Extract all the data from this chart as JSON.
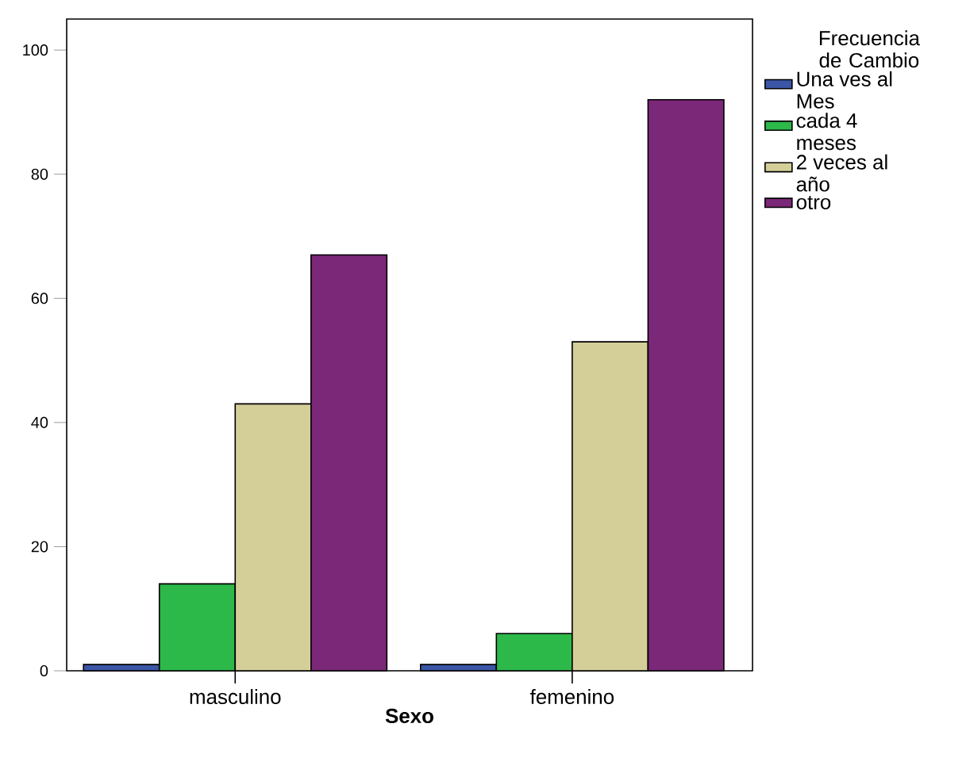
{
  "chart_data": {
    "type": "bar",
    "xlabel": "Sexo",
    "legend_title": "Frecuencia de Cambio",
    "legend": "top right",
    "categories": [
      "masculino",
      "femenino"
    ],
    "series": [
      {
        "name": "Una ves al Mes",
        "color": "#3b56a6",
        "values": [
          1,
          1
        ]
      },
      {
        "name": "cada 4 meses",
        "color": "#2db84a",
        "values": [
          14,
          6
        ]
      },
      {
        "name": "2 veces al año",
        "color": "#d4cf98",
        "values": [
          43,
          53
        ]
      },
      {
        "name": "otro",
        "color": "#7b2879",
        "values": [
          67,
          92
        ]
      }
    ],
    "ylim": [
      0,
      105
    ],
    "yticks": [
      0,
      20,
      40,
      60,
      80,
      100
    ]
  }
}
